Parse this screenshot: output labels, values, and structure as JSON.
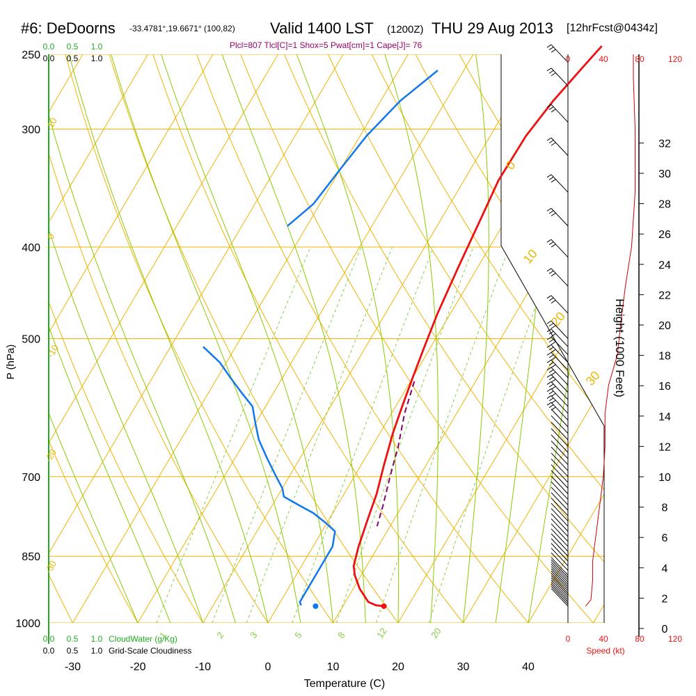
{
  "header": {
    "station": "#6: DeDoorns",
    "coords": "-33.4781°,19.6671° (100,82)",
    "valid": "Valid 1400 LST",
    "utc": "(1200Z)",
    "date": "THU 29 Aug 2013",
    "forecast": "[12hrFcst@0434z]",
    "info": "Plcl=807 Tlcl[C]=1 Shox=5 Pwat[cm]=1 Cape[J]= 76"
  },
  "chart_data": {
    "type": "line",
    "xlabel": "Temperature (C)",
    "ylabel": "P (hPa)",
    "right_label": "Height (1000 Feet)",
    "x_ticks": [
      -30,
      -20,
      -10,
      0,
      10,
      20,
      30,
      40
    ],
    "p_ticks": [
      250,
      300,
      400,
      500,
      700,
      850,
      1000
    ],
    "height_ticks": [
      0,
      2,
      4,
      6,
      8,
      10,
      12,
      14,
      16,
      18,
      20,
      22,
      24,
      26,
      28,
      30,
      32
    ],
    "cloud_scale_top": [
      "0.0",
      "0.5",
      "1.0"
    ],
    "cloud_scale_top2": [
      "0.0",
      "0.5",
      "1.0"
    ],
    "cloud_scale_bottom": [
      "0.0",
      "0.5",
      "1.0"
    ],
    "cloud_water_label": "CloudWater (g/Kg)",
    "cloud_scale_bottom2": [
      "0.0",
      "0.5",
      "1.0"
    ],
    "cloudiness_label": "Grid-Scale Cloudiness",
    "speed_ticks": [
      "0",
      "40",
      "80",
      "120"
    ],
    "speed_label": "Speed (kt)",
    "adiabat_labels": [
      "10",
      "0",
      "-10",
      "-20",
      "-30",
      "0",
      "10",
      "20",
      "30"
    ],
    "mixing_labels": [
      "1",
      "2",
      "3",
      "5",
      "8",
      "12",
      "20"
    ],
    "temperature_profile": [
      [
        16.3,
        960
      ],
      [
        15,
        958
      ],
      [
        13.5,
        950
      ],
      [
        11,
        920
      ],
      [
        9,
        890
      ],
      [
        8,
        870
      ],
      [
        7,
        830
      ],
      [
        6,
        780
      ],
      [
        5,
        730
      ],
      [
        3.5,
        680
      ],
      [
        2,
        630
      ],
      [
        1,
        590
      ],
      [
        0,
        550
      ],
      [
        -1,
        510
      ],
      [
        -2,
        470
      ],
      [
        -3,
        420
      ],
      [
        -4,
        370
      ],
      [
        -4.7,
        340
      ],
      [
        -4.5,
        305
      ],
      [
        -3.5,
        280
      ],
      [
        -2,
        258
      ],
      [
        -1,
        245
      ]
    ],
    "dewpoint_profile": [
      [
        3.5,
        958
      ],
      [
        3,
        950
      ],
      [
        3,
        870
      ],
      [
        3,
        830
      ],
      [
        2,
        800
      ],
      [
        0,
        785
      ],
      [
        -3,
        765
      ],
      [
        -6,
        750
      ],
      [
        -9,
        735
      ],
      [
        -10,
        720
      ],
      [
        -12,
        700
      ],
      [
        -15,
        670
      ],
      [
        -18,
        640
      ],
      [
        -20,
        615
      ],
      [
        -22,
        590
      ],
      [
        -25,
        570
      ],
      [
        -28,
        550
      ],
      [
        -31,
        530
      ],
      [
        -35,
        510
      ]
    ],
    "dewpoint_upper_profile": [
      [
        -33,
        380
      ],
      [
        -31,
        360
      ],
      [
        -30,
        330
      ],
      [
        -29,
        305
      ],
      [
        -27,
        280
      ],
      [
        -24,
        260
      ]
    ],
    "surface_temp_dot": [
      16.3,
      960
    ],
    "surface_dew_dot": [
      5.8,
      960
    ],
    "parcel_path": [
      [
        0.6,
        555
      ],
      [
        2,
        600
      ],
      [
        4,
        650
      ],
      [
        5.5,
        700
      ],
      [
        7,
        750
      ],
      [
        8,
        790
      ]
    ],
    "speed_profile_kt": [
      [
        20,
        960
      ],
      [
        26,
        945
      ],
      [
        28,
        900
      ],
      [
        28,
        860
      ],
      [
        30,
        830
      ],
      [
        33,
        790
      ],
      [
        36,
        750
      ],
      [
        40,
        700
      ],
      [
        42,
        650
      ],
      [
        42,
        600
      ],
      [
        46,
        560
      ],
      [
        56,
        520
      ],
      [
        60,
        480
      ],
      [
        65,
        440
      ],
      [
        72,
        400
      ],
      [
        76,
        350
      ],
      [
        76,
        300
      ],
      [
        74,
        265
      ],
      [
        74,
        250
      ]
    ],
    "wind_barbs_p": [
      960,
      955,
      950,
      945,
      940,
      935,
      930,
      925,
      920,
      915,
      910,
      905,
      900,
      895,
      890,
      880,
      870,
      860,
      850,
      840,
      830,
      820,
      810,
      800,
      790,
      780,
      770,
      760,
      750,
      740,
      730,
      720,
      710,
      700,
      690,
      680,
      670,
      660,
      650,
      640,
      630,
      620,
      610,
      600,
      590,
      580,
      570,
      560,
      550,
      540,
      530,
      520,
      510,
      500,
      470,
      440,
      410,
      380,
      350,
      320,
      295,
      270,
      255
    ]
  }
}
